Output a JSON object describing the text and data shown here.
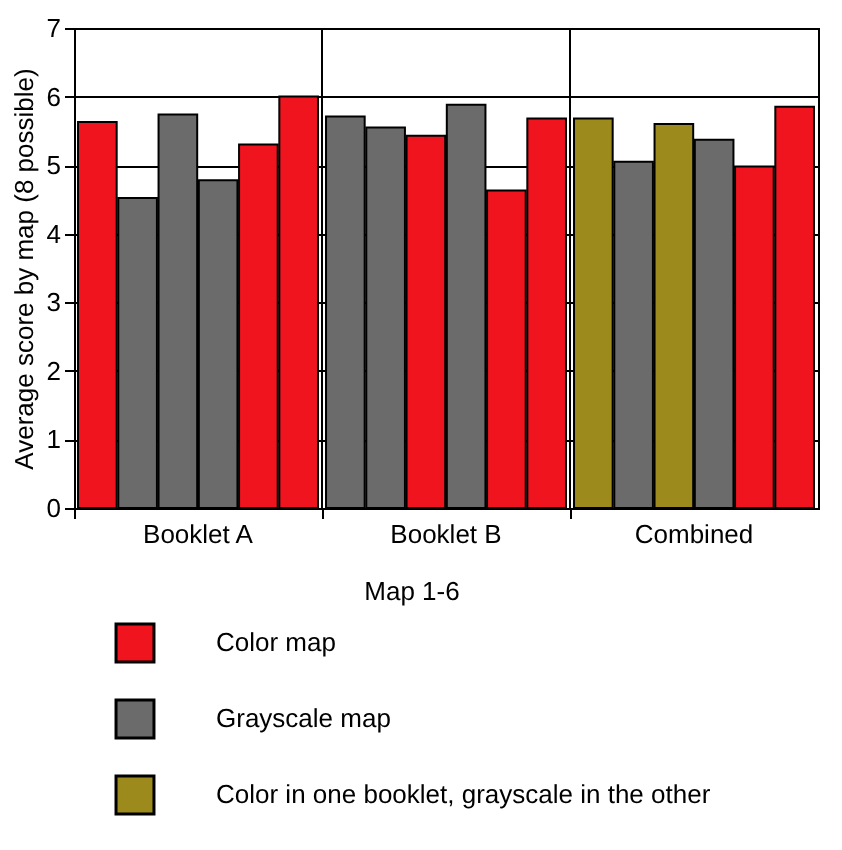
{
  "chart_data": {
    "type": "bar",
    "ylabel": "Average score by map (8 possible)",
    "legend_title": "Map 1-6",
    "categories": [
      "Booklet A",
      "Booklet B",
      "Combined"
    ],
    "series": [
      {
        "values": [
          5.63,
          5.71,
          5.68
        ],
        "colors": [
          "#f0141e",
          "#6b6b6b",
          "#9c8a1c"
        ]
      },
      {
        "values": [
          4.52,
          5.55,
          5.05
        ],
        "colors": [
          "#6b6b6b",
          "#6b6b6b",
          "#6b6b6b"
        ]
      },
      {
        "values": [
          5.74,
          5.43,
          5.6
        ],
        "colors": [
          "#6b6b6b",
          "#f0141e",
          "#9c8a1c"
        ]
      },
      {
        "values": [
          4.78,
          5.88,
          5.37
        ],
        "colors": [
          "#6b6b6b",
          "#6b6b6b",
          "#6b6b6b"
        ]
      },
      {
        "values": [
          5.3,
          4.63,
          4.98
        ],
        "colors": [
          "#f0141e",
          "#f0141e",
          "#f0141e"
        ]
      },
      {
        "values": [
          6.0,
          5.68,
          5.85
        ],
        "colors": [
          "#f0141e",
          "#f0141e",
          "#f0141e"
        ]
      },
      {
        "name": "Color map",
        "color": "#f0141e",
        "values": [
          null,
          null,
          null
        ]
      },
      {
        "name": "Grayscale map",
        "color": "#6b6b6b",
        "values": [
          null,
          null,
          null
        ]
      },
      {
        "name": "Color in one booklet, grayscale in the other",
        "color": "#9c8a1c",
        "values": [
          null,
          null,
          null
        ]
      }
    ],
    "ylim": [
      0,
      7
    ],
    "yticks": [
      0,
      1,
      2,
      3,
      4,
      5,
      6,
      7
    ],
    "grid": true,
    "legend": "bottom"
  }
}
